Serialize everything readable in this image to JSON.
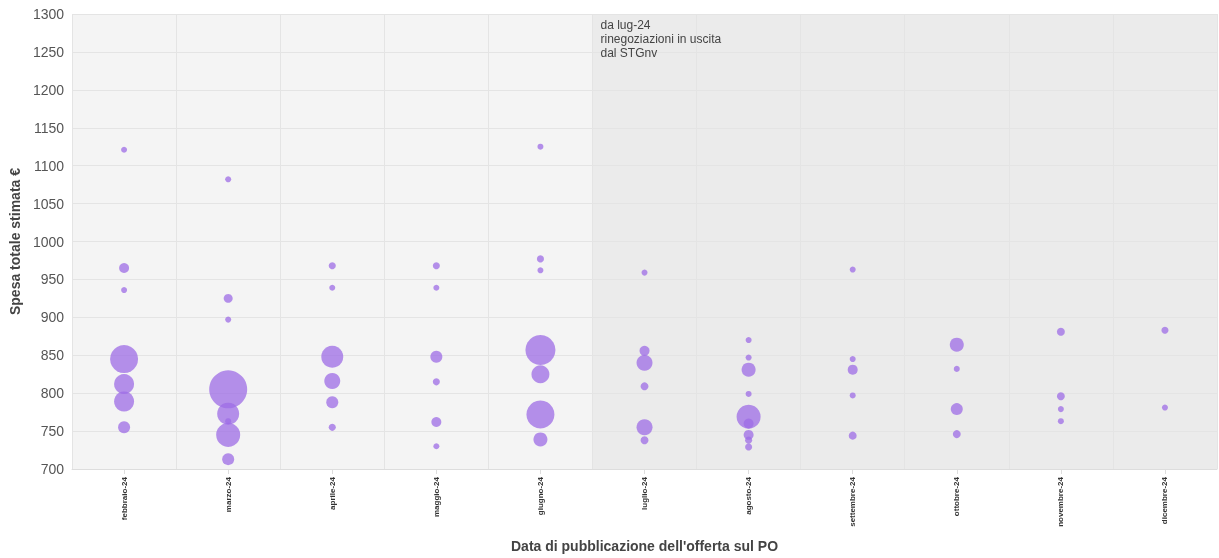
{
  "chart_data": {
    "type": "bubble",
    "xlabel": "Data di pubblicazione dell'offerta sul PO",
    "ylabel": "Spesa totale stimata €",
    "categories": [
      "febbraio-24",
      "marzo-24",
      "aprile-24",
      "maggio-24",
      "giugno-24",
      "luglio-24",
      "agosto-24",
      "settembre-24",
      "ottobre-24",
      "novembre-24",
      "dicembre-24"
    ],
    "ylim": [
      700,
      1300
    ],
    "yticks": [
      700,
      750,
      800,
      850,
      900,
      950,
      1000,
      1050,
      1100,
      1150,
      1200,
      1250,
      1300
    ],
    "grid": true,
    "bands": [
      {
        "axis": "x",
        "from": "luglio-24",
        "to": "dicembre-24",
        "label": "da lug-24 rinegoziazioni in uscita dal STGnv",
        "color": "#ebebeb"
      }
    ],
    "series": [
      {
        "color": "#9d6ce6",
        "x": [
          "febbraio-24",
          "febbraio-24",
          "febbraio-24",
          "febbraio-24",
          "febbraio-24",
          "febbraio-24",
          "febbraio-24",
          "marzo-24",
          "marzo-24",
          "marzo-24",
          "marzo-24",
          "marzo-24",
          "marzo-24",
          "marzo-24",
          "marzo-24",
          "aprile-24",
          "aprile-24",
          "aprile-24",
          "aprile-24",
          "aprile-24",
          "aprile-24",
          "maggio-24",
          "maggio-24",
          "maggio-24",
          "maggio-24",
          "maggio-24",
          "maggio-24",
          "giugno-24",
          "giugno-24",
          "giugno-24",
          "giugno-24",
          "giugno-24",
          "giugno-24",
          "giugno-24",
          "luglio-24",
          "luglio-24",
          "luglio-24",
          "luglio-24",
          "luglio-24",
          "luglio-24",
          "agosto-24",
          "agosto-24",
          "agosto-24",
          "agosto-24",
          "agosto-24",
          "agosto-24",
          "agosto-24",
          "agosto-24",
          "agosto-24",
          "settembre-24",
          "settembre-24",
          "settembre-24",
          "settembre-24",
          "settembre-24",
          "ottobre-24",
          "ottobre-24",
          "ottobre-24",
          "ottobre-24",
          "novembre-24",
          "novembre-24",
          "novembre-24",
          "novembre-24",
          "dicembre-24",
          "dicembre-24"
        ],
        "values": [
          1121,
          965,
          936,
          845,
          812,
          789,
          755,
          1082,
          925,
          897,
          805,
          773,
          763,
          745,
          713,
          968,
          939,
          848,
          816,
          788,
          755,
          968,
          939,
          848,
          815,
          762,
          730,
          1125,
          977,
          962,
          857,
          825,
          772,
          739,
          959,
          856,
          840,
          809,
          755,
          738,
          870,
          847,
          831,
          799,
          769,
          760,
          745,
          738,
          729,
          963,
          845,
          831,
          797,
          744,
          864,
          832,
          779,
          746,
          881,
          796,
          779,
          763,
          883,
          781
        ],
        "sizes": [
          0.025,
          0.069,
          0.025,
          0.543,
          0.277,
          0.277,
          0.1,
          0.025,
          0.056,
          0.025,
          1,
          0.335,
          0.025,
          0.4,
          0.1,
          0.035,
          0.025,
          0.335,
          0.177,
          0.1,
          0.035,
          0.035,
          0.025,
          0.1,
          0.035,
          0.069,
          0.025,
          0.025,
          0.035,
          0.025,
          0.623,
          0.224,
          0.543,
          0.136,
          0.025,
          0.069,
          0.177,
          0.044,
          0.177,
          0.044,
          0.025,
          0.025,
          0.136,
          0.025,
          0.4,
          0.069,
          0.069,
          0.035,
          0.035,
          0.025,
          0.025,
          0.069,
          0.025,
          0.044,
          0.136,
          0.025,
          0.1,
          0.044,
          0.044,
          0.044,
          0.025,
          0.025,
          0.035,
          0.025
        ]
      }
    ]
  }
}
